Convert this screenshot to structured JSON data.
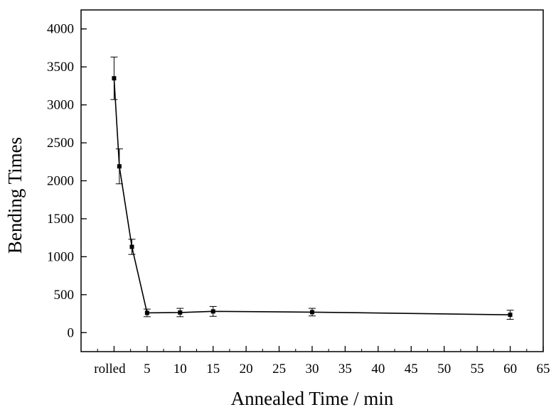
{
  "chart_data": {
    "type": "line",
    "xlabel": "Annealed Time / min",
    "ylabel": "Bending Times",
    "xlim": [
      -5,
      65
    ],
    "ylim": [
      -250,
      4250
    ],
    "x_ticks": [
      {
        "value": 0,
        "label": "rolled"
      },
      {
        "value": 5,
        "label": "5"
      },
      {
        "value": 10,
        "label": "10"
      },
      {
        "value": 15,
        "label": "15"
      },
      {
        "value": 20,
        "label": "20"
      },
      {
        "value": 25,
        "label": "25"
      },
      {
        "value": 30,
        "label": "30"
      },
      {
        "value": 35,
        "label": "35"
      },
      {
        "value": 40,
        "label": "40"
      },
      {
        "value": 45,
        "label": "45"
      },
      {
        "value": 50,
        "label": "50"
      },
      {
        "value": 55,
        "label": "55"
      },
      {
        "value": 60,
        "label": "60"
      },
      {
        "value": 65,
        "label": "65"
      }
    ],
    "y_ticks": [
      0,
      500,
      1000,
      1500,
      2000,
      2500,
      3000,
      3500,
      4000
    ],
    "grid": false,
    "legend": "none",
    "series": [
      {
        "points": [
          {
            "x": 0,
            "y": 3350,
            "err": 280
          },
          {
            "x": 0.8,
            "y": 2190,
            "err": 230
          },
          {
            "x": 2.7,
            "y": 1130,
            "err": 100
          },
          {
            "x": 5,
            "y": 260,
            "err": 50
          },
          {
            "x": 10,
            "y": 265,
            "err": 55
          },
          {
            "x": 15,
            "y": 280,
            "err": 65
          },
          {
            "x": 30,
            "y": 270,
            "err": 50
          },
          {
            "x": 60,
            "y": 235,
            "err": 60
          }
        ],
        "color": "#000000"
      }
    ]
  }
}
